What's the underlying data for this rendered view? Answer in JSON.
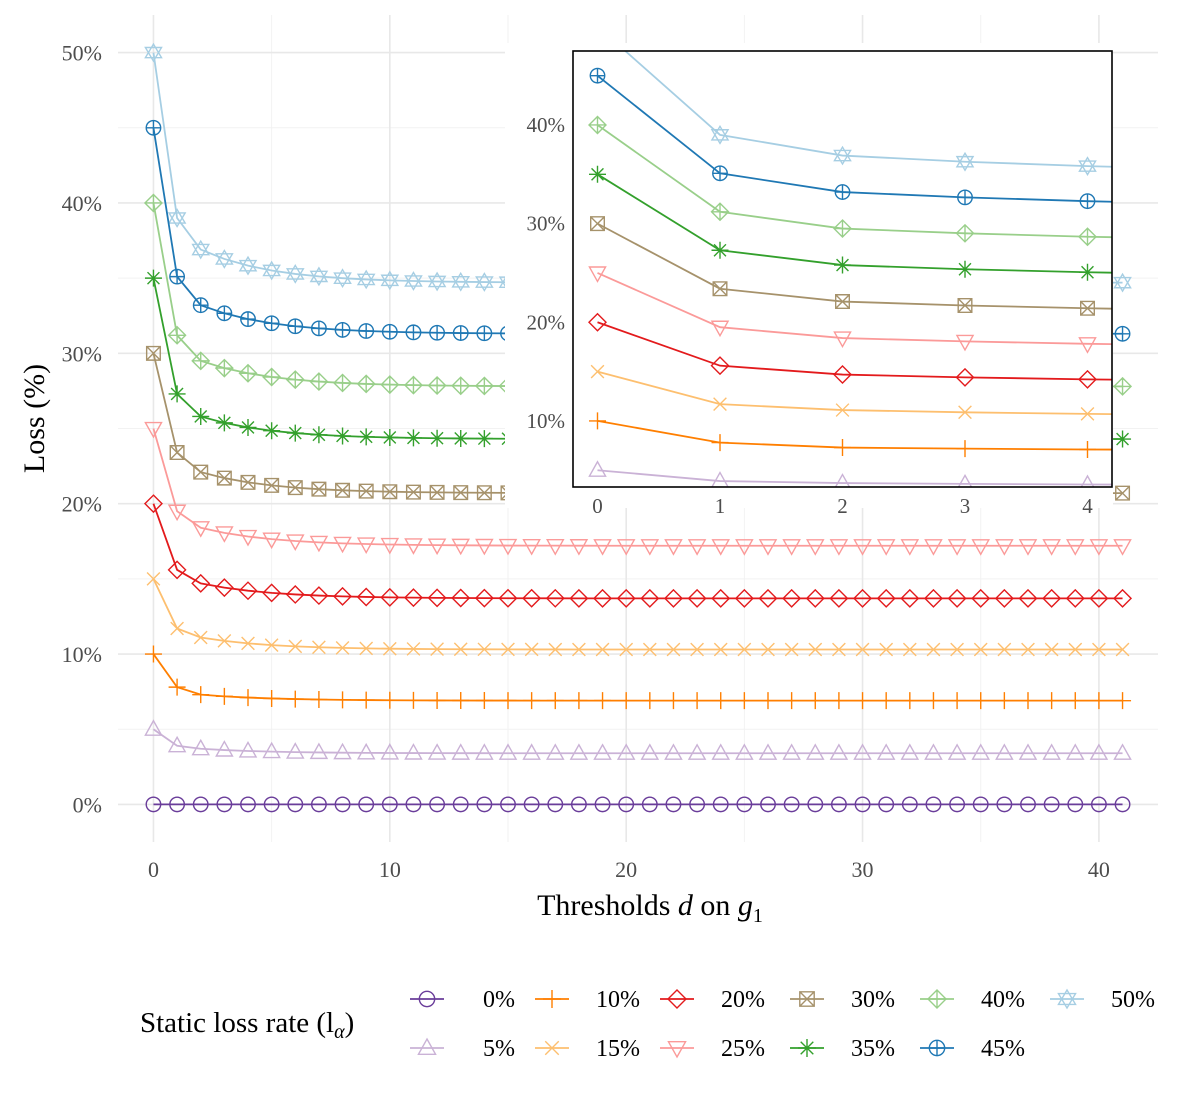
{
  "chart_data": [
    {
      "type": "line",
      "xlabel": "Thresholds d on g1",
      "xlabel_parts": [
        "Thresholds ",
        "d",
        " on ",
        "g",
        "1"
      ],
      "ylabel": "Loss (%)",
      "xlim": [
        -1.5,
        42.5
      ],
      "ylim": [
        -2.5,
        52.5
      ],
      "x_ticks": [
        0,
        10,
        20,
        30,
        40
      ],
      "x_tick_labels": [
        "0",
        "10",
        "20",
        "30",
        "40"
      ],
      "y_ticks": [
        0,
        10,
        20,
        30,
        40,
        50
      ],
      "y_tick_labels": [
        "0%",
        "10%",
        "20%",
        "30%",
        "40%",
        "50%"
      ],
      "grid": true,
      "legend_position": "bottom",
      "legend_title_parts": [
        "Static loss rate (l",
        "α",
        ")"
      ],
      "x": [
        0,
        1,
        2,
        3,
        4,
        5,
        6,
        7,
        8,
        9,
        10,
        11,
        12,
        13,
        14,
        15,
        16,
        17,
        18,
        19,
        20,
        21,
        22,
        23,
        24,
        25,
        26,
        27,
        28,
        29,
        30,
        31,
        32,
        33,
        34,
        35,
        36,
        37,
        38,
        39,
        40,
        41
      ],
      "series": [
        {
          "name": "0%",
          "color": "#6a3d9a",
          "marker": "circle",
          "start": 0,
          "d1": 0,
          "d2": 0,
          "plateau": 0,
          "tau": 2.5
        },
        {
          "name": "5%",
          "color": "#cab2d6",
          "marker": "triangle-up",
          "start": 5,
          "d1": 3.9,
          "d2": 3.7,
          "plateau": 3.4,
          "tau": 3
        },
        {
          "name": "10%",
          "color": "#ff7f00",
          "marker": "plus",
          "start": 10,
          "d1": 7.8,
          "d2": 7.3,
          "plateau": 6.9,
          "tau": 3
        },
        {
          "name": "15%",
          "color": "#fdbf6f",
          "marker": "x",
          "start": 15,
          "d1": 11.7,
          "d2": 11.1,
          "plateau": 10.3,
          "tau": 3
        },
        {
          "name": "20%",
          "color": "#e31a1c",
          "marker": "diamond",
          "start": 20,
          "d1": 15.6,
          "d2": 14.7,
          "plateau": 13.7,
          "tau": 3
        },
        {
          "name": "25%",
          "color": "#fb9a99",
          "marker": "triangle-down",
          "start": 25,
          "d1": 19.5,
          "d2": 18.4,
          "plateau": 17.2,
          "tau": 3
        },
        {
          "name": "30%",
          "color": "#a6926b",
          "marker": "square-x",
          "start": 30,
          "d1": 23.4,
          "d2": 22.1,
          "plateau": 20.7,
          "tau": 3
        },
        {
          "name": "35%",
          "color": "#33a02c",
          "marker": "asterisk",
          "start": 35,
          "d1": 27.3,
          "d2": 25.8,
          "plateau": 24.3,
          "tau": 3
        },
        {
          "name": "40%",
          "color": "#99cf8a",
          "marker": "diamond-plus",
          "start": 40,
          "d1": 31.2,
          "d2": 29.5,
          "plateau": 27.8,
          "tau": 3
        },
        {
          "name": "45%",
          "color": "#1f78b4",
          "marker": "circle-plus",
          "start": 45,
          "d1": 35.1,
          "d2": 33.2,
          "plateau": 31.3,
          "tau": 3
        },
        {
          "name": "50%",
          "color": "#a6cee3",
          "marker": "star",
          "start": 50,
          "d1": 39.0,
          "d2": 36.9,
          "plateau": 34.7,
          "tau": 3
        }
      ]
    },
    {
      "type": "line",
      "inset": true,
      "xlim": [
        -0.2,
        4.2
      ],
      "ylim": [
        3.3,
        47.5
      ],
      "x_ticks": [
        0,
        1,
        2,
        3,
        4
      ],
      "x_tick_labels": [
        "0",
        "1",
        "2",
        "3",
        "4"
      ],
      "y_ticks": [
        10,
        20,
        30,
        40
      ],
      "y_tick_labels": [
        "10%",
        "20%",
        "30%",
        "40%"
      ],
      "grid": false
    }
  ],
  "legend_rows": [
    [
      "0%",
      "10%",
      "20%",
      "30%",
      "40%",
      "50%"
    ],
    [
      "5%",
      "15%",
      "25%",
      "35%",
      "45%"
    ]
  ]
}
